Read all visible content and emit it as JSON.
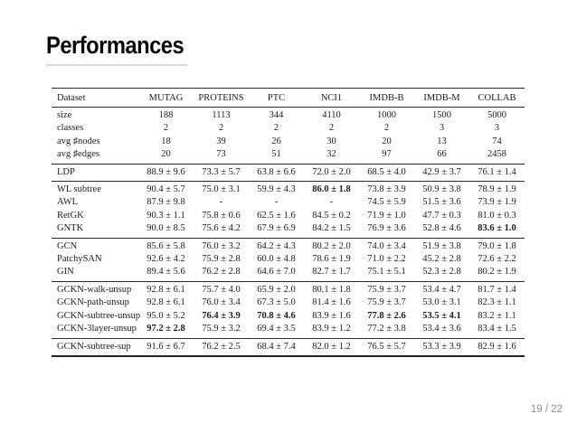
{
  "slide": {
    "title": "Performances",
    "page_number": "19 / 22"
  },
  "table": {
    "header": [
      "Dataset",
      "MUTAG",
      "PROTEINS",
      "PTC",
      "NCI1",
      "IMDB-B",
      "IMDB-M",
      "COLLAB"
    ],
    "stat_rows": [
      {
        "label": "size",
        "values": [
          "188",
          "1113",
          "344",
          "4110",
          "1000",
          "1500",
          "5000"
        ]
      },
      {
        "label": "classes",
        "values": [
          "2",
          "2",
          "2",
          "2",
          "2",
          "3",
          "3"
        ]
      },
      {
        "label": "avg ♯nodes",
        "values": [
          "18",
          "39",
          "26",
          "30",
          "20",
          "13",
          "74"
        ]
      },
      {
        "label": "avg ♯edges",
        "values": [
          "20",
          "73",
          "51",
          "32",
          "97",
          "66",
          "2458"
        ]
      }
    ],
    "groups": [
      {
        "rows": [
          {
            "label": "LDP",
            "values": [
              "88.9 ± 9.6",
              "73.3 ± 5.7",
              "63.8 ± 6.6",
              "72.0 ± 2.0",
              "68.5 ± 4.0",
              "42.9 ± 3.7",
              "76.1 ± 1.4"
            ]
          }
        ]
      },
      {
        "rows": [
          {
            "label": "WL subtree",
            "values": [
              "90.4 ± 5.7",
              "75.0 ± 3.1",
              "59.9 ± 4.3",
              {
                "v": "86.0 ± 1.8",
                "b": true
              },
              "73.8 ± 3.9",
              "50.9 ± 3.8",
              "78.9 ± 1.9"
            ]
          },
          {
            "label": "AWL",
            "values": [
              "87.9 ± 9.8",
              "-",
              "-",
              "-",
              "74.5 ± 5.9",
              "51.5 ± 3.6",
              "73.9 ± 1.9"
            ]
          },
          {
            "label": "RetGK",
            "values": [
              "90.3 ± 1.1",
              "75.8 ± 0.6",
              "62.5 ± 1.6",
              "84.5 ± 0.2",
              "71.9 ± 1.0",
              "47.7 ± 0.3",
              "81.0 ± 0.3"
            ]
          },
          {
            "label": "GNTK",
            "values": [
              "90.0 ± 8.5",
              "75.6 ± 4.2",
              "67.9 ± 6.9",
              "84.2 ± 1.5",
              "76.9 ± 3.6",
              "52.8 ± 4.6",
              {
                "v": "83.6 ± 1.0",
                "b": true
              }
            ]
          }
        ]
      },
      {
        "rows": [
          {
            "label": "GCN",
            "values": [
              "85.6 ± 5.8",
              "76.0 ± 3.2",
              "64.2 ± 4.3",
              "80.2 ± 2.0",
              "74.0 ± 3.4",
              "51.9 ± 3.8",
              "79.0 ± 1.8"
            ]
          },
          {
            "label": "PatchySAN",
            "values": [
              "92.6 ± 4.2",
              "75.9 ± 2.8",
              "60.0 ± 4.8",
              "78.6 ± 1.9",
              "71.0 ± 2.2",
              "45.2 ± 2.8",
              "72.6 ± 2.2"
            ]
          },
          {
            "label": "GIN",
            "values": [
              "89.4 ± 5.6",
              "76.2 ± 2.8",
              "64.6 ± 7.0",
              "82.7 ± 1.7",
              "75.1 ± 5.1",
              "52.3 ± 2.8",
              "80.2 ± 1.9"
            ]
          }
        ]
      },
      {
        "rows": [
          {
            "label": "GCKN-walk-unsup",
            "values": [
              "92.8 ± 6.1",
              "75.7 ± 4.0",
              "65.9 ± 2.0",
              "80.1 ± 1.8",
              "75.9 ± 3.7",
              "53.4 ± 4.7",
              "81.7 ± 1.4"
            ]
          },
          {
            "label": "GCKN-path-unsup",
            "values": [
              "92.8 ± 6.1",
              "76.0 ± 3.4",
              "67.3 ± 5.0",
              "81.4 ± 1.6",
              "75.9 ± 3.7",
              "53.0 ± 3.1",
              "82.3 ± 1.1"
            ]
          },
          {
            "label": "GCKN-subtree-unsup",
            "values": [
              "95.0 ± 5.2",
              {
                "v": "76.4 ± 3.9",
                "b": true
              },
              {
                "v": "70.8 ± 4.6",
                "b": true
              },
              "83.9 ± 1.6",
              {
                "v": "77.8 ± 2.6",
                "b": true
              },
              {
                "v": "53.5 ± 4.1",
                "b": true
              },
              "83.2 ± 1.1"
            ]
          },
          {
            "label": "GCKN-3layer-unsup",
            "values": [
              {
                "v": "97.2 ± 2.8",
                "b": true
              },
              "75.9 ± 3.2",
              "69.4 ± 3.5",
              "83.9 ± 1.2",
              "77.2 ± 3.8",
              "53.4 ± 3.6",
              "83.4 ± 1.5"
            ]
          }
        ]
      },
      {
        "rows": [
          {
            "label": "GCKN-subtree-sup",
            "values": [
              "91.6 ± 6.7",
              "76.2 ± 2.5",
              "68.4 ± 7.4",
              "82.0 ± 1.2",
              "76.5 ± 5.7",
              "53.3 ± 3.9",
              "82.9 ± 1.6"
            ]
          }
        ]
      }
    ]
  }
}
